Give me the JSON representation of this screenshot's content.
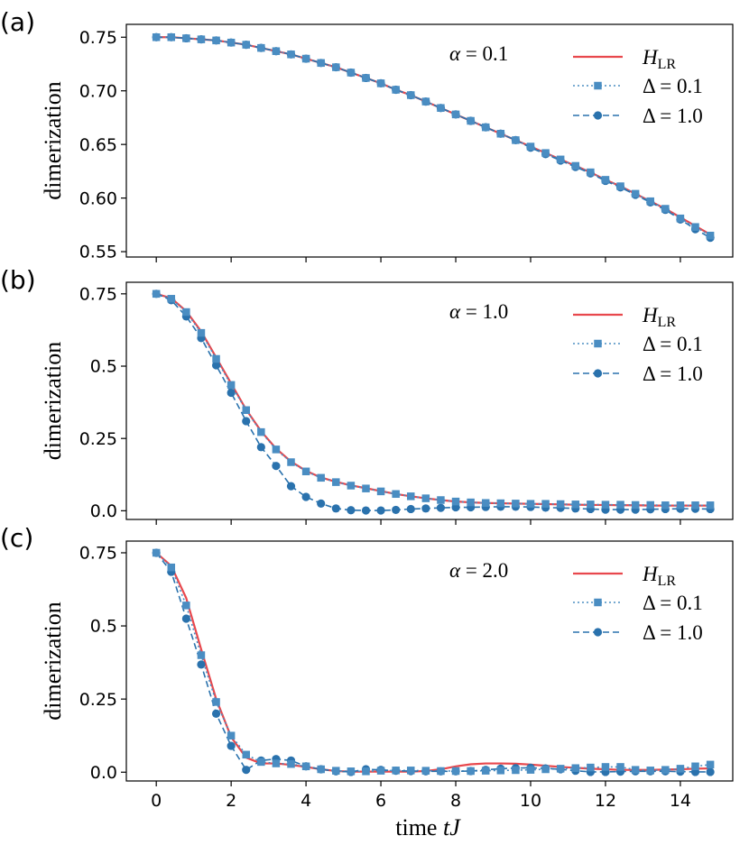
{
  "figure": {
    "xlabel_prefix": "time ",
    "xlabel_var": "tJ",
    "ylabel": "dimerization",
    "colors": {
      "HLR": "#e8484d",
      "delta01": "#4a8dc2",
      "delta10": "#2a72ad"
    },
    "legend": {
      "HLR_main": "H",
      "HLR_sub": "LR",
      "delta01": "Δ = 0.1",
      "delta10": "Δ = 1.0"
    }
  },
  "chart_data": [
    {
      "type": "line",
      "panel": "(a)",
      "alpha_label": "α = 0.1",
      "xlim": [
        -0.8,
        15.4
      ],
      "ylim": [
        0.545,
        0.762
      ],
      "xticks": [
        0,
        2,
        4,
        6,
        8,
        10,
        12,
        14
      ],
      "yticks": [
        0.55,
        0.6,
        0.65,
        0.7,
        0.75
      ],
      "ytick_labels": [
        "0.55",
        "0.60",
        "0.65",
        "0.70",
        "0.75"
      ],
      "show_xtick_labels": false,
      "x": [
        0,
        0.4,
        0.8,
        1.2,
        1.6,
        2.0,
        2.4,
        2.8,
        3.2,
        3.6,
        4.0,
        4.4,
        4.8,
        5.2,
        5.6,
        6.0,
        6.4,
        6.8,
        7.2,
        7.6,
        8.0,
        8.4,
        8.8,
        9.2,
        9.6,
        10.0,
        10.4,
        10.8,
        11.2,
        11.6,
        12.0,
        12.4,
        12.8,
        13.2,
        13.6,
        14.0,
        14.4,
        14.8
      ],
      "series": [
        {
          "name": "H_LR",
          "values": [
            0.75,
            0.75,
            0.749,
            0.748,
            0.747,
            0.745,
            0.743,
            0.74,
            0.737,
            0.734,
            0.73,
            0.726,
            0.722,
            0.717,
            0.712,
            0.707,
            0.701,
            0.696,
            0.69,
            0.684,
            0.678,
            0.672,
            0.666,
            0.66,
            0.654,
            0.648,
            0.642,
            0.636,
            0.63,
            0.624,
            0.617,
            0.611,
            0.604,
            0.597,
            0.59,
            0.582,
            0.574,
            0.566
          ]
        },
        {
          "name": "Δ = 0.1",
          "values": [
            0.75,
            0.75,
            0.749,
            0.748,
            0.747,
            0.745,
            0.743,
            0.74,
            0.737,
            0.734,
            0.73,
            0.726,
            0.722,
            0.717,
            0.712,
            0.707,
            0.701,
            0.696,
            0.69,
            0.684,
            0.678,
            0.672,
            0.666,
            0.66,
            0.654,
            0.648,
            0.642,
            0.636,
            0.63,
            0.624,
            0.617,
            0.611,
            0.604,
            0.597,
            0.59,
            0.581,
            0.573,
            0.565
          ]
        },
        {
          "name": "Δ = 1.0",
          "values": [
            0.75,
            0.75,
            0.749,
            0.748,
            0.747,
            0.745,
            0.743,
            0.74,
            0.737,
            0.734,
            0.73,
            0.726,
            0.722,
            0.717,
            0.712,
            0.707,
            0.701,
            0.696,
            0.69,
            0.684,
            0.678,
            0.672,
            0.666,
            0.66,
            0.654,
            0.647,
            0.641,
            0.635,
            0.629,
            0.623,
            0.616,
            0.61,
            0.603,
            0.596,
            0.589,
            0.58,
            0.571,
            0.563
          ]
        }
      ]
    },
    {
      "type": "line",
      "panel": "(b)",
      "alpha_label": "α = 1.0",
      "xlim": [
        -0.8,
        15.4
      ],
      "ylim": [
        -0.03,
        0.79
      ],
      "xticks": [
        0,
        2,
        4,
        6,
        8,
        10,
        12,
        14
      ],
      "yticks": [
        0.0,
        0.25,
        0.5,
        0.75
      ],
      "ytick_labels": [
        "0.0",
        "0.25",
        "0.5",
        "0.75"
      ],
      "show_xtick_labels": false,
      "x": [
        0,
        0.4,
        0.8,
        1.2,
        1.6,
        2.0,
        2.4,
        2.8,
        3.2,
        3.6,
        4.0,
        4.4,
        4.8,
        5.2,
        5.6,
        6.0,
        6.4,
        6.8,
        7.2,
        7.6,
        8.0,
        8.4,
        8.8,
        9.2,
        9.6,
        10.0,
        10.4,
        10.8,
        11.2,
        11.6,
        12.0,
        12.4,
        12.8,
        13.2,
        13.6,
        14.0,
        14.4,
        14.8
      ],
      "series": [
        {
          "name": "H_LR",
          "values": [
            0.75,
            0.735,
            0.69,
            0.62,
            0.53,
            0.44,
            0.35,
            0.275,
            0.215,
            0.17,
            0.138,
            0.115,
            0.1,
            0.088,
            0.078,
            0.068,
            0.058,
            0.05,
            0.043,
            0.037,
            0.032,
            0.029,
            0.027,
            0.026,
            0.025,
            0.024,
            0.023,
            0.022,
            0.021,
            0.02,
            0.02,
            0.019,
            0.019,
            0.018,
            0.018,
            0.018,
            0.018,
            0.018
          ]
        },
        {
          "name": "Δ = 0.1",
          "values": [
            0.75,
            0.733,
            0.687,
            0.615,
            0.525,
            0.435,
            0.348,
            0.272,
            0.212,
            0.168,
            0.136,
            0.114,
            0.099,
            0.087,
            0.077,
            0.067,
            0.058,
            0.05,
            0.043,
            0.037,
            0.032,
            0.029,
            0.027,
            0.026,
            0.025,
            0.024,
            0.024,
            0.023,
            0.022,
            0.022,
            0.021,
            0.021,
            0.02,
            0.02,
            0.019,
            0.019,
            0.019,
            0.019
          ]
        },
        {
          "name": "Δ = 1.0",
          "values": [
            0.75,
            0.728,
            0.672,
            0.597,
            0.503,
            0.408,
            0.31,
            0.22,
            0.155,
            0.085,
            0.048,
            0.025,
            0.008,
            0.002,
            0.001,
            0.001,
            0.003,
            0.006,
            0.008,
            0.01,
            0.012,
            0.012,
            0.013,
            0.014,
            0.014,
            0.013,
            0.011,
            0.01,
            0.008,
            0.006,
            0.004,
            0.004,
            0.004,
            0.005,
            0.006,
            0.007,
            0.007,
            0.006
          ]
        }
      ]
    },
    {
      "type": "line",
      "panel": "(c)",
      "alpha_label": "α = 2.0",
      "xlim": [
        -0.8,
        15.4
      ],
      "ylim": [
        -0.03,
        0.79
      ],
      "xticks": [
        0,
        2,
        4,
        6,
        8,
        10,
        12,
        14
      ],
      "yticks": [
        0.0,
        0.25,
        0.5,
        0.75
      ],
      "ytick_labels": [
        "0.0",
        "0.25",
        "0.5",
        "0.75"
      ],
      "xtick_labels": [
        "0",
        "2",
        "4",
        "6",
        "8",
        "10",
        "12",
        "14"
      ],
      "show_xtick_labels": true,
      "x": [
        0,
        0.4,
        0.8,
        1.2,
        1.6,
        2.0,
        2.4,
        2.8,
        3.2,
        3.6,
        4.0,
        4.4,
        4.8,
        5.2,
        5.6,
        6.0,
        6.4,
        6.8,
        7.2,
        7.6,
        8.0,
        8.4,
        8.8,
        9.2,
        9.6,
        10.0,
        10.4,
        10.8,
        11.2,
        11.6,
        12.0,
        12.4,
        12.8,
        13.2,
        13.6,
        14.0,
        14.4,
        14.8
      ],
      "series": [
        {
          "name": "H_LR",
          "values": [
            0.75,
            0.705,
            0.595,
            0.42,
            0.25,
            0.12,
            0.05,
            0.03,
            0.03,
            0.025,
            0.018,
            0.01,
            0.004,
            0.002,
            0.002,
            0.002,
            0.002,
            0.002,
            0.004,
            0.01,
            0.02,
            0.027,
            0.03,
            0.03,
            0.029,
            0.026,
            0.022,
            0.018,
            0.015,
            0.012,
            0.01,
            0.008,
            0.008,
            0.008,
            0.009,
            0.01,
            0.012,
            0.013
          ]
        },
        {
          "name": "Δ = 0.1",
          "values": [
            0.75,
            0.7,
            0.57,
            0.4,
            0.24,
            0.125,
            0.06,
            0.035,
            0.03,
            0.028,
            0.02,
            0.01,
            0.005,
            0.003,
            0.003,
            0.005,
            0.006,
            0.006,
            0.005,
            0.004,
            0.004,
            0.004,
            0.005,
            0.006,
            0.007,
            0.008,
            0.01,
            0.012,
            0.014,
            0.016,
            0.018,
            0.018,
            0.008,
            0.006,
            0.008,
            0.012,
            0.02,
            0.026
          ]
        },
        {
          "name": "Δ = 1.0",
          "values": [
            0.75,
            0.685,
            0.525,
            0.368,
            0.2,
            0.09,
            0.008,
            0.04,
            0.045,
            0.04,
            0.02,
            0.01,
            0.003,
            0.001,
            0.01,
            0.008,
            0.005,
            0.004,
            0.003,
            0.003,
            0.003,
            0.004,
            0.008,
            0.012,
            0.014,
            0.015,
            0.013,
            0.01,
            0.005,
            0.001,
            0.001,
            0.002,
            0.003,
            0.003,
            0.003,
            0.002,
            0.001,
            0.001
          ]
        }
      ]
    }
  ]
}
